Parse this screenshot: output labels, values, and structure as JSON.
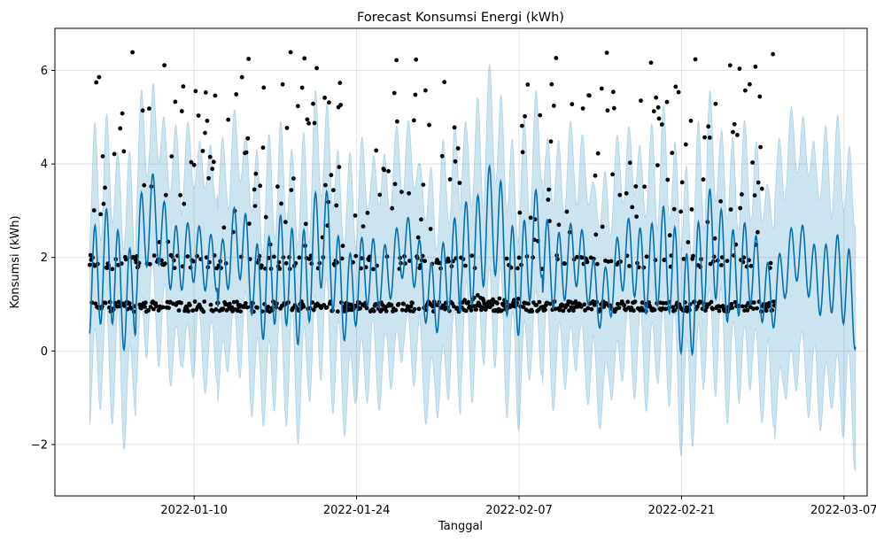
{
  "chart_data": {
    "type": "line",
    "title": "Forecast Konsumsi Energi (kWh)",
    "xlabel": "Tanggal",
    "ylabel": "Konsumsi (kWh)",
    "x_range": [
      "2021-12-29",
      "2022-03-09"
    ],
    "ylim": [
      -3.1,
      6.9
    ],
    "grid": true,
    "x_ticks": [
      {
        "date": "2022-01-10",
        "label": "2022-01-10"
      },
      {
        "date": "2022-01-24",
        "label": "2022-01-24"
      },
      {
        "date": "2022-02-07",
        "label": "2022-02-07"
      },
      {
        "date": "2022-02-21",
        "label": "2022-02-21"
      },
      {
        "date": "2022-03-07",
        "label": "2022-03-07"
      }
    ],
    "y_ticks": [
      {
        "value": -2,
        "label": "−2"
      },
      {
        "value": 0,
        "label": "0"
      },
      {
        "value": 2,
        "label": "2"
      },
      {
        "value": 4,
        "label": "4"
      },
      {
        "value": 6,
        "label": "6"
      }
    ],
    "history_range": [
      "2022-01-01",
      "2022-03-01"
    ],
    "forecast_range": [
      "2022-01-01",
      "2022-03-08"
    ],
    "series": [
      {
        "kind": "actual",
        "color": "#000000"
      },
      {
        "kind": "forecast",
        "color": "#0072b2"
      },
      {
        "kind": "uncertainty",
        "color": "#0072b2"
      }
    ]
  }
}
